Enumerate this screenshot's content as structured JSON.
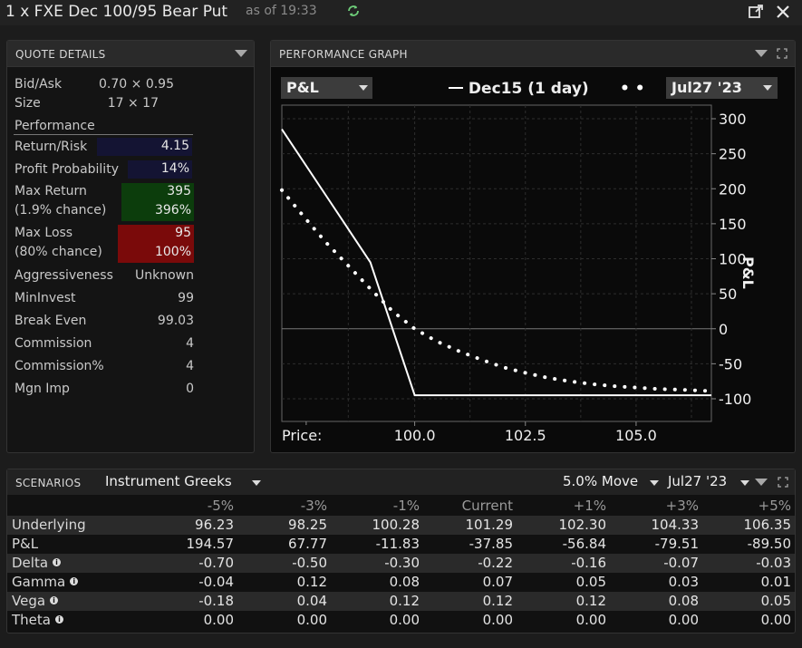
{
  "window": {
    "title": "1 x FXE Dec 100/95 Bear Put",
    "as_of": "as of 19:33"
  },
  "quote_details": {
    "title": "QUOTE DETAILS",
    "bid_ask_label": "Bid/Ask",
    "bid_ask_value": "0.70 × 0.95",
    "size_label": "Size",
    "size_value": "17 × 17",
    "performance_label": "Performance",
    "return_risk_label": "Return/Risk",
    "return_risk_value": "4.15",
    "profit_prob_label": "Profit Probability",
    "profit_prob_value": "14%",
    "max_return_label": "Max Return",
    "max_return_chance": "(1.9% chance)",
    "max_return_value": "395",
    "max_return_pct": "396%",
    "max_loss_label": "Max Loss",
    "max_loss_chance": "(80% chance)",
    "max_loss_value": "95",
    "max_loss_pct": "100%",
    "aggressiveness_label": "Aggressiveness",
    "aggressiveness_value": "Unknown",
    "mininvest_label": "MinInvest",
    "mininvest_value": "99",
    "breakeven_label": "Break Even",
    "breakeven_value": "99.03",
    "commission_label": "Commission",
    "commission_value": "4",
    "commission_pct_label": "Commission%",
    "commission_pct_value": "4",
    "mgn_imp_label": "Mgn Imp",
    "mgn_imp_value": "0"
  },
  "performance_graph": {
    "title": "PERFORMANCE GRAPH",
    "metric_select": "P&L",
    "legend_line": "Dec15 (1 day)",
    "date_select": "Jul27 '23",
    "price_label": "Price:",
    "y_axis_label": "P&L"
  },
  "chart_data": {
    "type": "line",
    "xlabel": "Price:",
    "ylabel": "P&L",
    "xlim": [
      97.0,
      106.7
    ],
    "ylim": [
      -100,
      300
    ],
    "x_ticks": [
      "100.0",
      "102.5",
      "105.0"
    ],
    "x_tick_values": [
      100.0,
      102.5,
      105.0
    ],
    "y_ticks": [
      "300",
      "250",
      "200",
      "150",
      "100",
      "50",
      "0",
      "-50",
      "-100"
    ],
    "y_tick_values": [
      300,
      250,
      200,
      150,
      100,
      50,
      0,
      -50,
      -100
    ],
    "series": [
      {
        "name": "Dec15 (1 day)",
        "style": "solid",
        "x": [
          97.0,
          98.0,
          99.0,
          100.0,
          101.0,
          102.0,
          103.0,
          104.0,
          105.0,
          106.0,
          106.7
        ],
        "y": [
          285,
          190,
          95,
          -95,
          -95,
          -95,
          -95,
          -95,
          -95,
          -95,
          -95
        ]
      },
      {
        "name": "Jul27 '23",
        "style": "dotted",
        "x": [
          97.0,
          97.5,
          98.0,
          98.5,
          99.0,
          99.5,
          100.0,
          100.5,
          101.0,
          101.5,
          102.0,
          102.5,
          103.0,
          103.5,
          104.0,
          104.5,
          105.0,
          105.5,
          106.0,
          106.7
        ],
        "y": [
          198,
          160,
          123,
          90,
          57,
          25,
          0,
          -18,
          -32,
          -44,
          -55,
          -63,
          -70,
          -75,
          -79,
          -82,
          -84,
          -86,
          -87,
          -89
        ]
      }
    ],
    "grid": true,
    "legend": "top"
  },
  "scenarios": {
    "title": "SCENARIOS",
    "mode_select": "Instrument Greeks",
    "move_select": "5.0% Move",
    "date_select": "Jul27 '23",
    "columns": [
      "-5%",
      "-3%",
      "-1%",
      "Current",
      "+1%",
      "+3%",
      "+5%"
    ],
    "rows": [
      {
        "label": "Underlying",
        "values": [
          "96.23",
          "98.25",
          "100.28",
          "101.29",
          "102.30",
          "104.33",
          "106.35"
        ],
        "info": false
      },
      {
        "label": "P&L",
        "values": [
          "194.57",
          "67.77",
          "-11.83",
          "-37.85",
          "-56.84",
          "-79.51",
          "-89.50"
        ],
        "info": false
      },
      {
        "label": "Delta",
        "values": [
          "-0.70",
          "-0.50",
          "-0.30",
          "-0.22",
          "-0.16",
          "-0.07",
          "-0.03"
        ],
        "info": true
      },
      {
        "label": "Gamma",
        "values": [
          "-0.04",
          "0.12",
          "0.08",
          "0.07",
          "0.05",
          "0.03",
          "0.01"
        ],
        "info": true
      },
      {
        "label": "Vega",
        "values": [
          "-0.18",
          "0.04",
          "0.12",
          "0.12",
          "0.12",
          "0.08",
          "0.05"
        ],
        "info": true
      },
      {
        "label": "Theta",
        "values": [
          "0.00",
          "0.00",
          "0.00",
          "0.00",
          "0.00",
          "0.00",
          "0.00"
        ],
        "info": true
      }
    ]
  },
  "colors": {
    "return_risk_bg": "#141433",
    "max_return_bg": "#0c3d0c",
    "max_loss_bg": "#7a0a0a"
  }
}
